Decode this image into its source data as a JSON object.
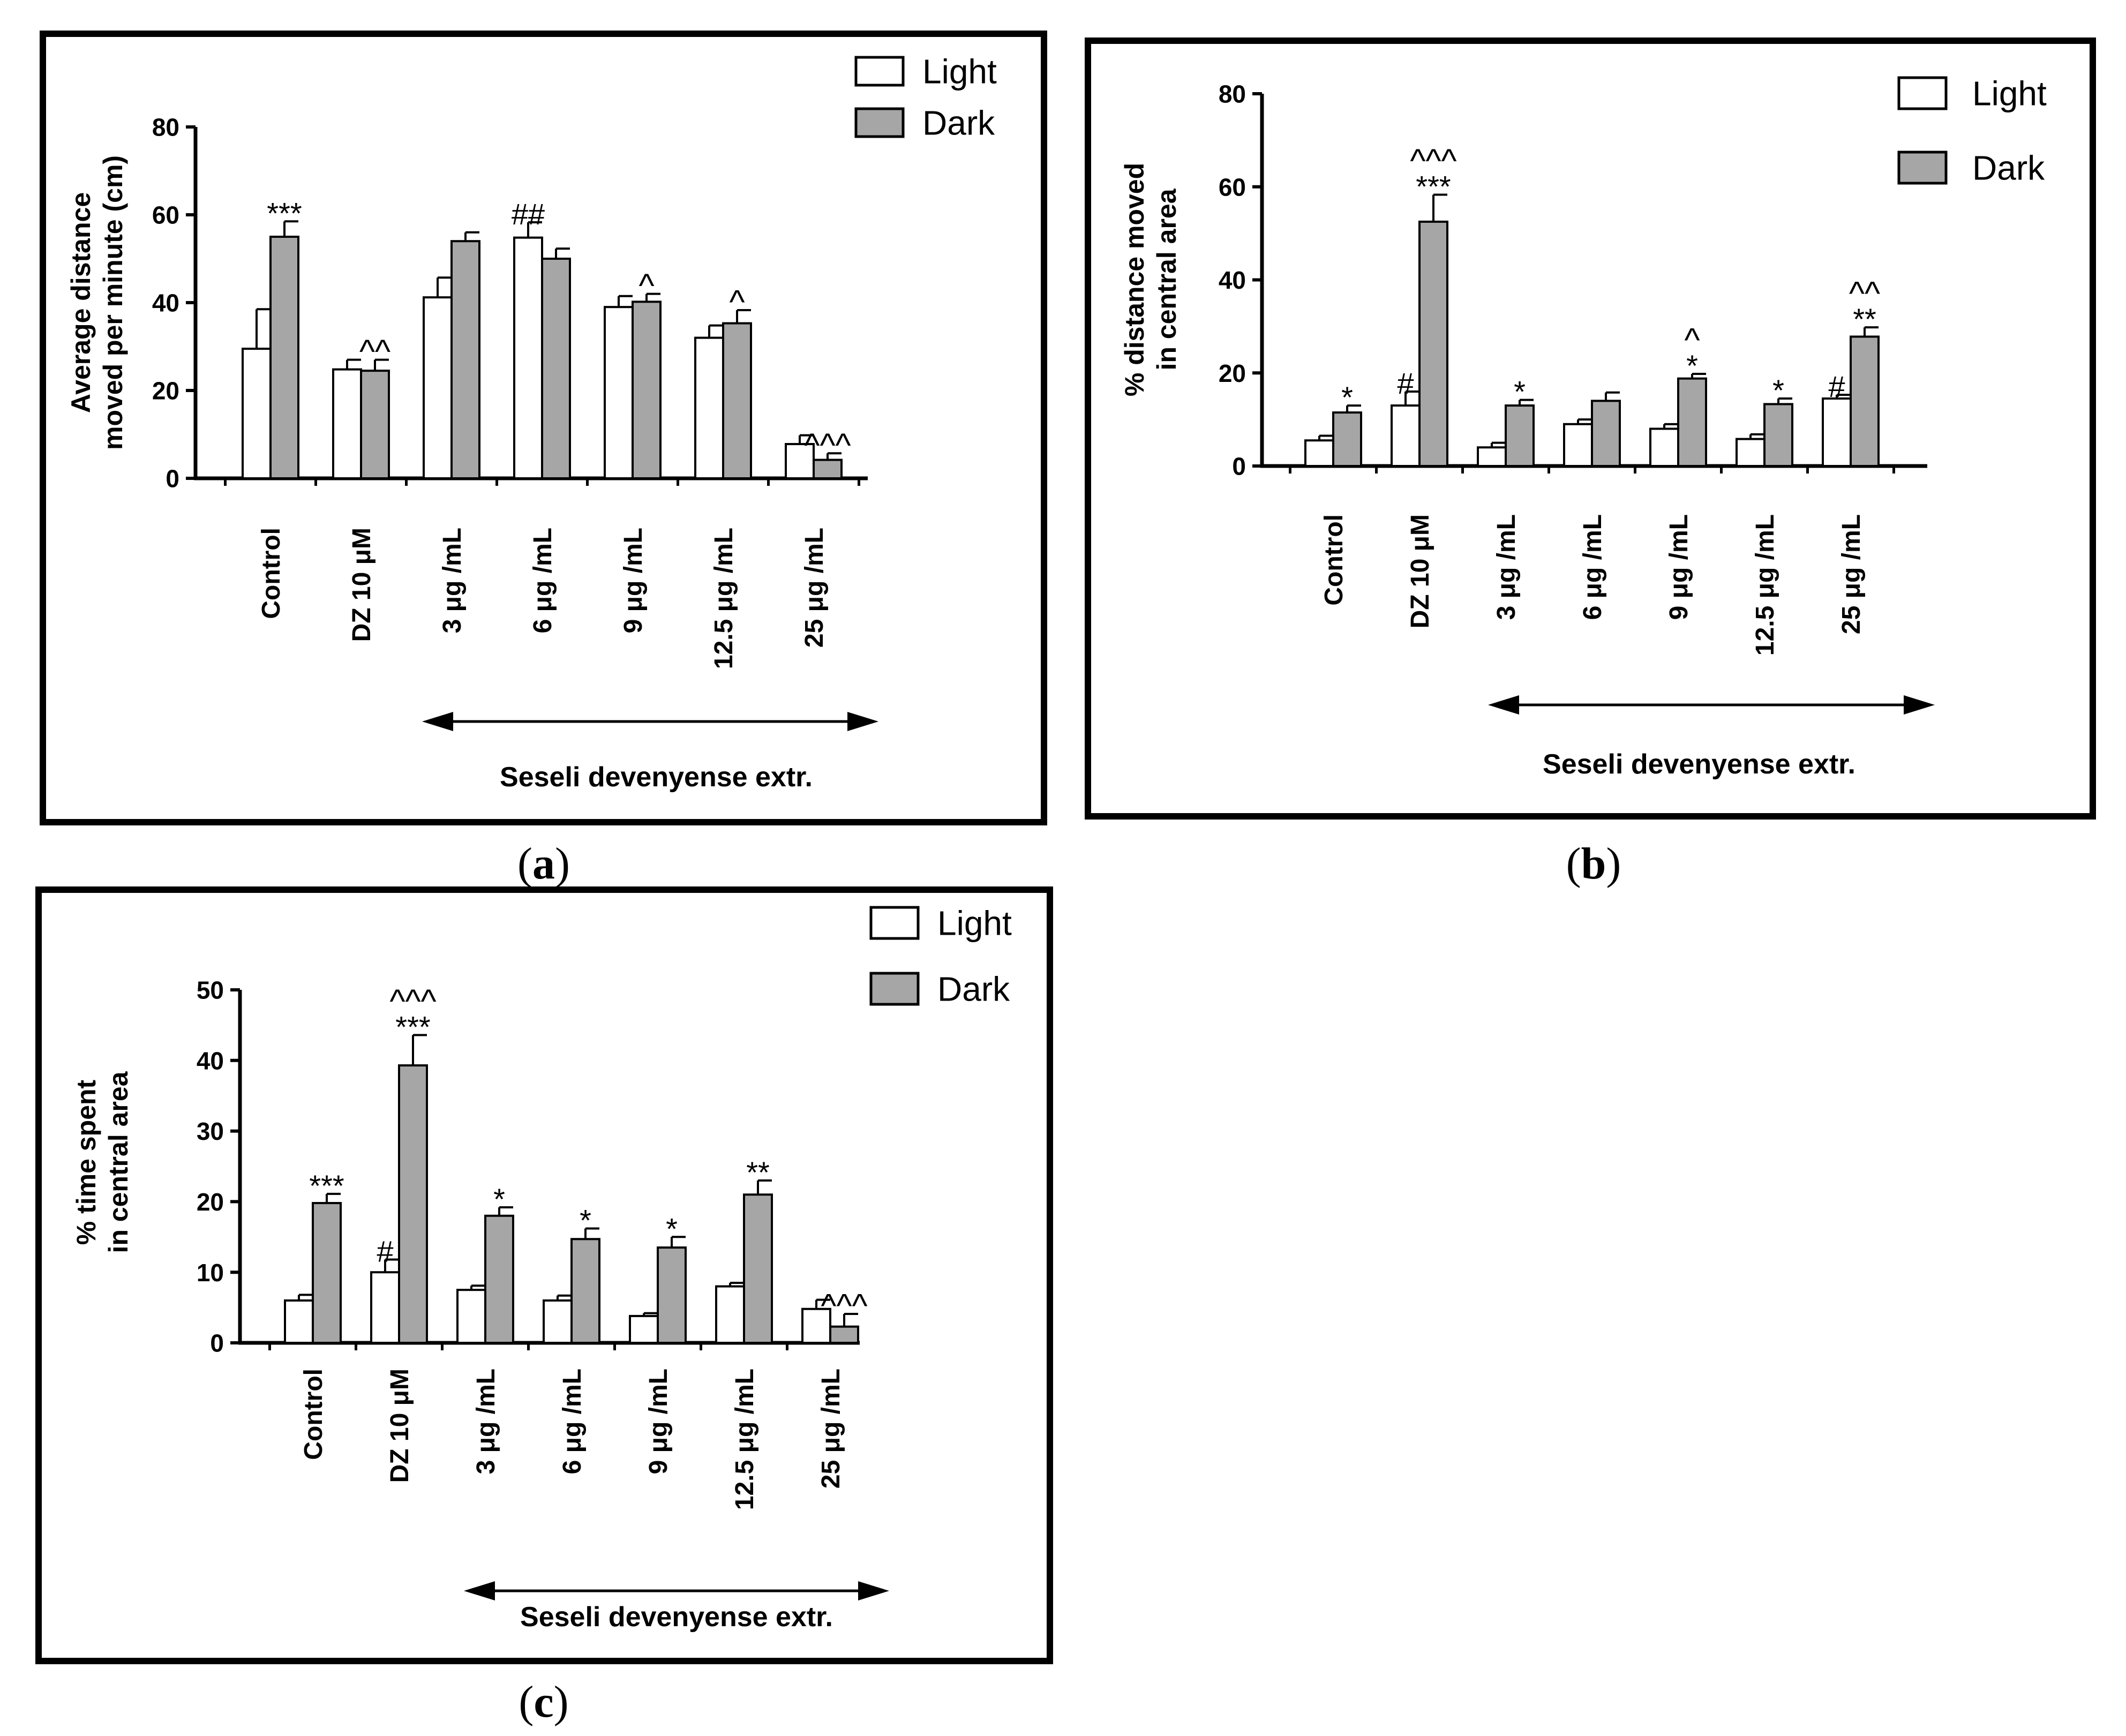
{
  "panels": [
    {
      "caption_letter": "a",
      "legend": [
        "Light",
        "Dark"
      ],
      "chart_data": {
        "type": "bar",
        "title": "",
        "ylabel": [
          "Average distance",
          "moved per minute (cm)"
        ],
        "xlabel": "",
        "ylim": [
          0,
          80
        ],
        "yticks": [
          0,
          20,
          40,
          60,
          80
        ],
        "categories": [
          "Control",
          "DZ 10 μM",
          "3 μg /mL",
          "6 μg /mL",
          "9 μg /mL",
          "12.5 μg /mL",
          "25 μg /mL"
        ],
        "series": [
          {
            "name": "Light",
            "values": [
              29.5,
              24.8,
              41.2,
              54.8,
              39.0,
              32.0,
              7.8
            ],
            "errors": [
              9.0,
              2.2,
              4.5,
              3.5,
              2.5,
              2.8,
              2.0
            ]
          },
          {
            "name": "Dark",
            "values": [
              55.0,
              24.5,
              54.0,
              50.0,
              40.2,
              35.3,
              4.2
            ],
            "errors": [
              3.5,
              2.5,
              2.0,
              2.3,
              1.8,
              3.0,
              1.5
            ]
          }
        ],
        "annotations": [
          {
            "category": 0,
            "series": "Dark",
            "text": "***"
          },
          {
            "category": 1,
            "series": "Dark",
            "text": "^^"
          },
          {
            "category": 3,
            "series": "Light",
            "text": "##"
          },
          {
            "category": 4,
            "series": "Dark",
            "text": "^"
          },
          {
            "category": 5,
            "series": "Dark",
            "text": "^"
          },
          {
            "category": 6,
            "series": "Dark",
            "text": "^^^"
          }
        ],
        "group_label": "Seseli devenyense extr."
      }
    },
    {
      "caption_letter": "b",
      "legend": [
        "Light",
        "Dark"
      ],
      "chart_data": {
        "type": "bar",
        "title": "",
        "ylabel": [
          "% distance moved",
          "in central area"
        ],
        "xlabel": "",
        "ylim": [
          0,
          80
        ],
        "yticks": [
          0,
          20,
          40,
          60,
          80
        ],
        "categories": [
          "Control",
          "DZ 10 μM",
          "3 μg /mL",
          "6 μg /mL",
          "9 μg /mL",
          "12.5 μg /mL",
          "25 μg /mL"
        ],
        "series": [
          {
            "name": "Light",
            "values": [
              5.5,
              13.0,
              4.0,
              9.0,
              8.0,
              5.8,
              14.5
            ],
            "errors": [
              1.0,
              3.0,
              1.0,
              1.0,
              1.0,
              1.0,
              0.8
            ]
          },
          {
            "name": "Dark",
            "values": [
              11.5,
              52.5,
              13.0,
              14.0,
              18.8,
              13.3,
              27.8
            ],
            "errors": [
              1.5,
              5.8,
              1.2,
              1.8,
              1.0,
              1.2,
              2.0
            ]
          }
        ],
        "annotations": [
          {
            "category": 0,
            "series": "Dark",
            "text": "*"
          },
          {
            "category": 1,
            "series": "Light",
            "text": "#"
          },
          {
            "category": 1,
            "series": "Dark",
            "text": "***"
          },
          {
            "category": 1,
            "series": "Dark",
            "text": "^^^"
          },
          {
            "category": 2,
            "series": "Dark",
            "text": "*"
          },
          {
            "category": 4,
            "series": "Dark",
            "text": "*"
          },
          {
            "category": 4,
            "series": "Dark",
            "text": "^"
          },
          {
            "category": 5,
            "series": "Dark",
            "text": "*"
          },
          {
            "category": 6,
            "series": "Light",
            "text": "#"
          },
          {
            "category": 6,
            "series": "Dark",
            "text": "**"
          },
          {
            "category": 6,
            "series": "Dark",
            "text": "^^"
          }
        ],
        "group_label": "Seseli devenyense extr."
      }
    },
    {
      "caption_letter": "c",
      "legend": [
        "Light",
        "Dark"
      ],
      "chart_data": {
        "type": "bar",
        "title": "",
        "ylabel": [
          "% time spent",
          "in central area"
        ],
        "xlabel": "",
        "ylim": [
          0,
          50
        ],
        "yticks": [
          0,
          10,
          20,
          30,
          40,
          50
        ],
        "categories": [
          "Control",
          "DZ 10 μM",
          "3 μg /mL",
          "6 μg /mL",
          "9 μg /mL",
          "12.5 μg /mL",
          "25 μg /mL"
        ],
        "series": [
          {
            "name": "Light",
            "values": [
              6.0,
              10.0,
              7.5,
              6.0,
              3.8,
              8.0,
              4.8
            ],
            "errors": [
              0.8,
              1.8,
              0.6,
              0.7,
              0.4,
              0.5,
              1.3
            ]
          },
          {
            "name": "Dark",
            "values": [
              19.8,
              39.3,
              18.0,
              14.7,
              13.5,
              21.0,
              2.3
            ],
            "errors": [
              1.3,
              4.3,
              1.2,
              1.5,
              1.5,
              2.0,
              1.8
            ]
          }
        ],
        "annotations": [
          {
            "category": 0,
            "series": "Dark",
            "text": "***"
          },
          {
            "category": 1,
            "series": "Light",
            "text": "#"
          },
          {
            "category": 1,
            "series": "Dark",
            "text": "***"
          },
          {
            "category": 1,
            "series": "Dark",
            "text": "^^^"
          },
          {
            "category": 2,
            "series": "Dark",
            "text": "*"
          },
          {
            "category": 3,
            "series": "Dark",
            "text": "*"
          },
          {
            "category": 4,
            "series": "Dark",
            "text": "*"
          },
          {
            "category": 5,
            "series": "Dark",
            "text": "**"
          },
          {
            "category": 6,
            "series": "Dark",
            "text": "^^^"
          }
        ],
        "group_label": "Seseli devenyense extr."
      }
    }
  ],
  "colors": {
    "light_bar": "#ffffff",
    "dark_bar": "#a6a6a6",
    "stroke": "#000000"
  }
}
